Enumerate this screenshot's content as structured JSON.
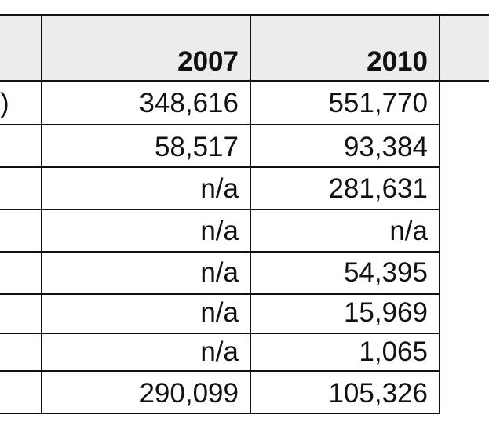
{
  "table": {
    "headers": {
      "col1": "2007",
      "col2": "2010"
    },
    "rows": [
      {
        "label": ")",
        "y2007": "348,616",
        "y2010": "551,770"
      },
      {
        "label": "",
        "y2007": "58,517",
        "y2010": "93,384"
      },
      {
        "label": "",
        "y2007": "n/a",
        "y2010": "281,631"
      },
      {
        "label": "",
        "y2007": "n/a",
        "y2010": "n/a"
      },
      {
        "label": "",
        "y2007": "n/a",
        "y2010": "54,395"
      },
      {
        "label": "",
        "y2007": "n/a",
        "y2010": "15,969"
      },
      {
        "label": "",
        "y2007": "n/a",
        "y2010": "1,065"
      },
      {
        "label": "",
        "y2007": "290,099",
        "y2010": "105,326"
      }
    ]
  }
}
